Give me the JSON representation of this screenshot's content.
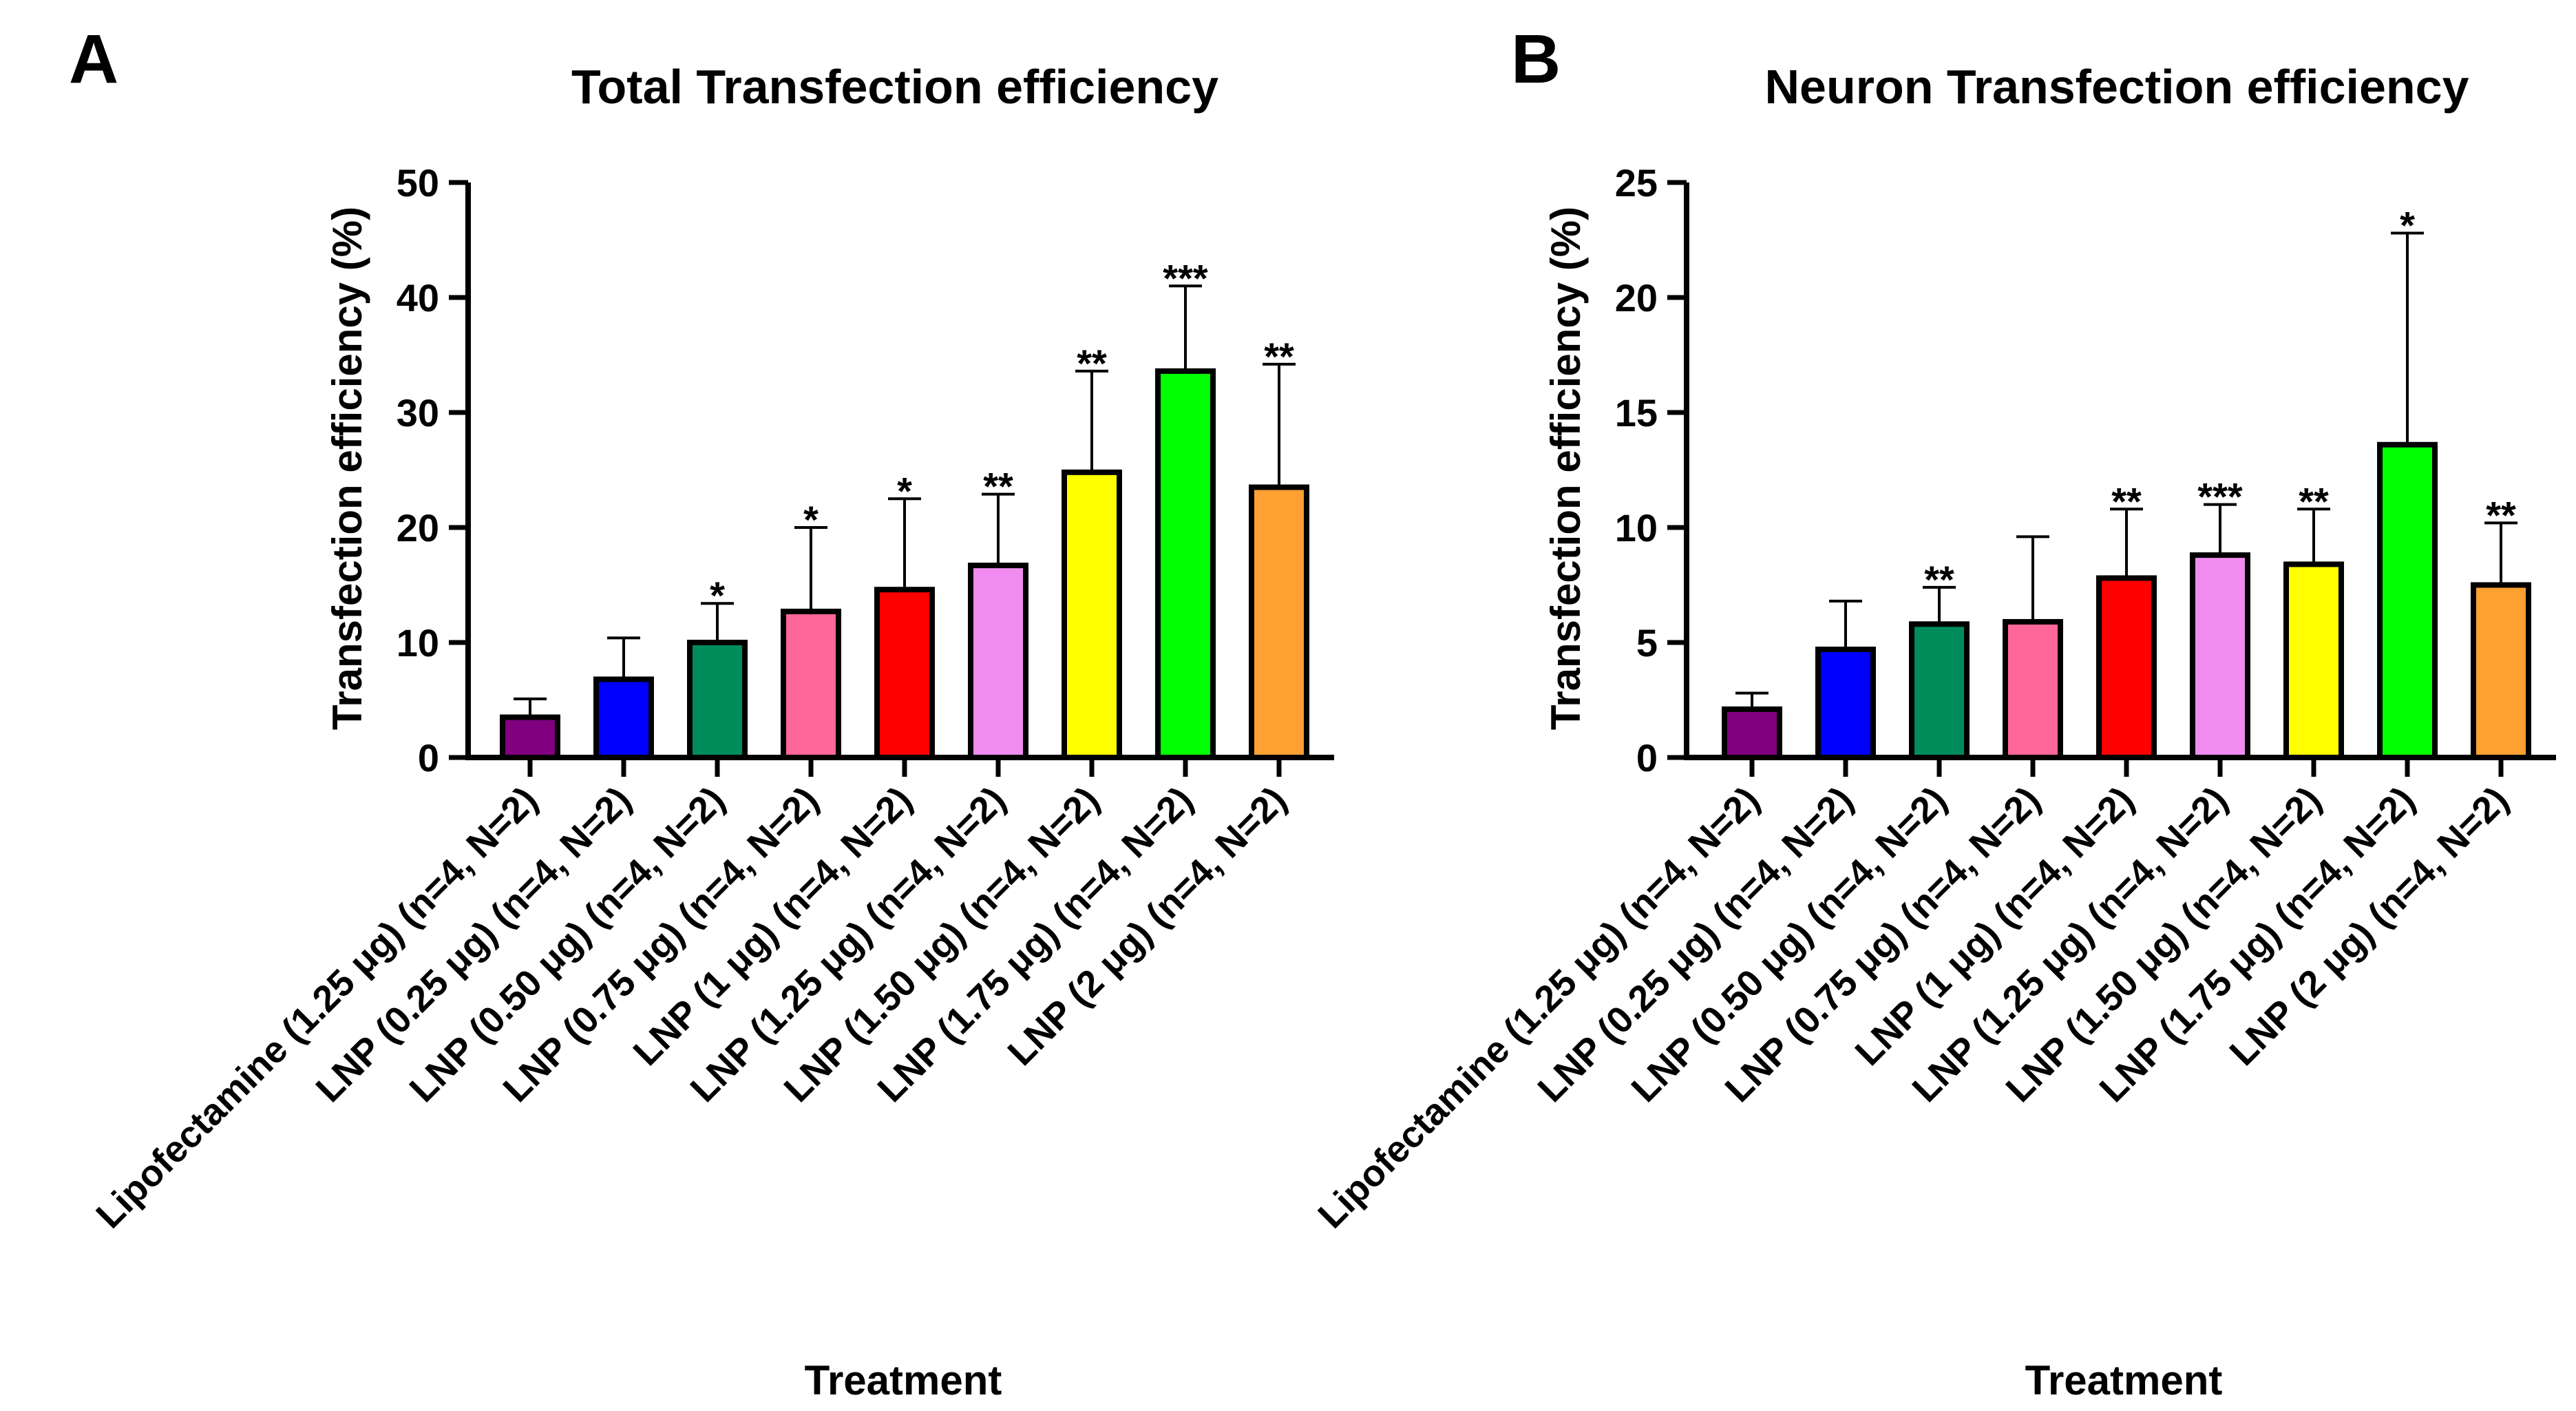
{
  "chart_data": [
    {
      "panel_letter": "A",
      "type": "bar",
      "title": "Total Transfection efficiency",
      "xlabel": "Treatment",
      "ylabel": "Transfection efficiency (%)",
      "ylim": [
        0,
        50
      ],
      "yticks": [
        0,
        10,
        20,
        30,
        40,
        50
      ],
      "grid": false,
      "categories": [
        "Lipofectamine (1.25 μg) (n=4, N=2)",
        "LNP (0.25 μg) (n=4, N=2)",
        "LNP (0.50 μg) (n=4, N=2)",
        "LNP (0.75 μg) (n=4, N=2)",
        "LNP (1 μg) (n=4, N=2)",
        "LNP (1.25 μg) (n=4, N=2)",
        "LNP (1.50 μg) (n=4, N=2)",
        "LNP (1.75 μg) (n=4, N=2)",
        "LNP (2 μg) (n=4, N=2)"
      ],
      "values": [
        3.5,
        6.8,
        10.0,
        12.7,
        14.6,
        16.7,
        24.8,
        33.6,
        23.5
      ],
      "error_upper": [
        5.1,
        10.4,
        13.4,
        20.0,
        22.5,
        22.9,
        33.6,
        41.0,
        34.2
      ],
      "significance": [
        "",
        "",
        "*",
        "*",
        "*",
        "**",
        "**",
        "***",
        "**"
      ],
      "colors": [
        "#800080",
        "#0000ff",
        "#008c5a",
        "#ff6699",
        "#ff0000",
        "#f08cf0",
        "#ffff00",
        "#00ff00",
        "#ffa032"
      ]
    },
    {
      "panel_letter": "B",
      "type": "bar",
      "title": "Neuron Transfection efficiency",
      "xlabel": "Treatment",
      "ylabel": "Transfection efficiency (%)",
      "ylim": [
        0,
        25
      ],
      "yticks": [
        0,
        5,
        10,
        15,
        20,
        25
      ],
      "grid": false,
      "categories": [
        "Lipofectamine (1.25 μg) (n=4, N=2)",
        "LNP (0.25 μg) (n=4, N=2)",
        "LNP (0.50 μg) (n=4, N=2)",
        "LNP (0.75 μg) (n=4, N=2)",
        "LNP (1 μg) (n=4, N=2)",
        "LNP (1.25 μg) (n=4, N=2)",
        "LNP (1.50 μg) (n=4, N=2)",
        "LNP (1.75 μg) (n=4, N=2)",
        "LNP (2 μg) (n=4, N=2)"
      ],
      "values": [
        2.1,
        4.7,
        5.8,
        5.9,
        7.8,
        8.8,
        8.4,
        13.6,
        7.5
      ],
      "error_upper": [
        2.8,
        6.8,
        7.4,
        9.6,
        10.8,
        11.0,
        10.8,
        22.8,
        10.2
      ],
      "significance": [
        "",
        "",
        "**",
        "",
        "**",
        "***",
        "**",
        "*",
        "**"
      ],
      "colors": [
        "#800080",
        "#0000ff",
        "#008c5a",
        "#ff6699",
        "#ff0000",
        "#f08cf0",
        "#ffff00",
        "#00ff00",
        "#ffa032"
      ]
    }
  ]
}
